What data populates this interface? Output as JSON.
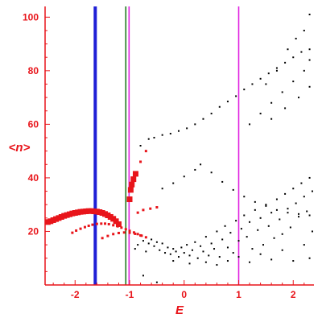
{
  "chart_data": {
    "type": "scatter",
    "xlabel": "E",
    "ylabel": "<n>",
    "xlim": [
      -2.55,
      2.38
    ],
    "ylim": [
      0,
      104
    ],
    "x_ticks": [
      -2,
      -1,
      0,
      1,
      2
    ],
    "y_ticks": [
      20,
      40,
      60,
      80,
      100
    ],
    "x_tick_labels": [
      "-2",
      "-1",
      "0",
      "1",
      "2"
    ],
    "y_tick_labels": [
      "20",
      "40",
      "60",
      "80",
      "100"
    ],
    "grid": false,
    "legend": "none",
    "colors": {
      "axis": "#e8141a",
      "red_series": "#e8141a",
      "black_series": "#000000",
      "line_blue": "#1f1fd6",
      "line_green": "#1f7a1f",
      "line_magenta": "#e020e0"
    },
    "vertical_lines": [
      {
        "x": -1.63,
        "color": "#1f1fd6",
        "width": "thick"
      },
      {
        "x": -1.07,
        "color": "#1f7a1f",
        "width": "thin"
      },
      {
        "x": -1.01,
        "color": "#e020e0",
        "width": "thin"
      },
      {
        "x": 1.0,
        "color": "#e020e0",
        "width": "thin"
      }
    ],
    "red_large_points": [
      [
        -2.5,
        23.5
      ],
      [
        -2.45,
        23.8
      ],
      [
        -2.4,
        24.2
      ],
      [
        -2.35,
        24.6
      ],
      [
        -2.3,
        25.0
      ],
      [
        -2.25,
        25.4
      ],
      [
        -2.2,
        25.8
      ],
      [
        -2.15,
        26.1
      ],
      [
        -2.1,
        26.4
      ],
      [
        -2.05,
        26.7
      ],
      [
        -2.0,
        26.9
      ],
      [
        -1.95,
        27.1
      ],
      [
        -1.9,
        27.3
      ],
      [
        -1.85,
        27.4
      ],
      [
        -1.8,
        27.5
      ],
      [
        -1.75,
        27.6
      ],
      [
        -1.7,
        27.6
      ],
      [
        -1.65,
        27.5
      ],
      [
        -1.6,
        27.4
      ],
      [
        -1.55,
        27.2
      ],
      [
        -1.5,
        26.9
      ],
      [
        -1.45,
        26.5
      ],
      [
        -1.4,
        26.0
      ],
      [
        -1.35,
        25.4
      ],
      [
        -1.3,
        24.7
      ],
      [
        -1.25,
        23.8
      ],
      [
        -1.2,
        22.7
      ],
      [
        -1.0,
        32.0
      ],
      [
        -0.98,
        35.5
      ],
      [
        -0.96,
        37.5
      ],
      [
        -0.93,
        39.5
      ],
      [
        -0.89,
        41.5
      ]
    ],
    "red_small_points": [
      [
        -2.05,
        19.5
      ],
      [
        -1.98,
        20.3
      ],
      [
        -1.9,
        21.0
      ],
      [
        -1.82,
        21.6
      ],
      [
        -1.75,
        22.1
      ],
      [
        -1.68,
        22.5
      ],
      [
        -1.6,
        22.8
      ],
      [
        -1.52,
        22.9
      ],
      [
        -1.45,
        22.9
      ],
      [
        -1.38,
        22.7
      ],
      [
        -1.3,
        22.3
      ],
      [
        -1.22,
        21.9
      ],
      [
        -1.15,
        21.4
      ],
      [
        -1.07,
        20.8
      ],
      [
        -1.0,
        20.2
      ],
      [
        -0.92,
        19.6
      ],
      [
        -0.85,
        19.0
      ],
      [
        -0.78,
        18.4
      ],
      [
        -0.7,
        17.8
      ],
      [
        -1.5,
        17.5
      ],
      [
        -1.4,
        18.3
      ],
      [
        -1.3,
        19.0
      ],
      [
        -1.2,
        19.4
      ],
      [
        -1.1,
        19.6
      ],
      [
        -1.0,
        19.5
      ],
      [
        -0.9,
        19.1
      ],
      [
        -0.8,
        18.5
      ],
      [
        -0.85,
        27.0
      ],
      [
        -0.75,
        28.0
      ],
      [
        -0.62,
        28.5
      ],
      [
        -0.5,
        29.0
      ],
      [
        -0.8,
        46.0
      ],
      [
        -0.7,
        50.0
      ]
    ],
    "black_points": [
      [
        -0.8,
        52.0
      ],
      [
        -0.65,
        54.5
      ],
      [
        -0.55,
        55.0
      ],
      [
        -0.4,
        56.0
      ],
      [
        -0.25,
        56.5
      ],
      [
        -0.1,
        57.5
      ],
      [
        0.05,
        58.5
      ],
      [
        0.2,
        60.0
      ],
      [
        0.35,
        62.0
      ],
      [
        0.5,
        64.0
      ],
      [
        0.65,
        66.5
      ],
      [
        0.8,
        68.5
      ],
      [
        0.95,
        70.5
      ],
      [
        1.1,
        73.0
      ],
      [
        1.25,
        75.0
      ],
      [
        1.4,
        77.0
      ],
      [
        1.55,
        79.0
      ],
      [
        1.7,
        81.0
      ],
      [
        1.85,
        83.0
      ],
      [
        2.0,
        85.0
      ],
      [
        2.15,
        87.0
      ],
      [
        2.3,
        88.0
      ],
      [
        1.2,
        60.0
      ],
      [
        1.4,
        64.0
      ],
      [
        1.6,
        68.0
      ],
      [
        1.8,
        72.0
      ],
      [
        2.0,
        76.0
      ],
      [
        2.2,
        80.0
      ],
      [
        2.3,
        84.0
      ],
      [
        1.5,
        75.0
      ],
      [
        1.7,
        80.0
      ],
      [
        1.9,
        88.0
      ],
      [
        2.05,
        92.0
      ],
      [
        2.2,
        95.0
      ],
      [
        2.3,
        101.0
      ],
      [
        1.6,
        62.0
      ],
      [
        1.85,
        66.0
      ],
      [
        2.1,
        70.0
      ],
      [
        2.3,
        74.0
      ],
      [
        -0.6,
        17.0
      ],
      [
        -0.55,
        14.5
      ],
      [
        -0.5,
        16.0
      ],
      [
        -0.45,
        13.0
      ],
      [
        -0.4,
        15.5
      ],
      [
        -0.35,
        12.0
      ],
      [
        -0.3,
        14.0
      ],
      [
        -0.25,
        11.5
      ],
      [
        -0.2,
        13.5
      ],
      [
        -0.15,
        12.5
      ],
      [
        -0.1,
        10.5
      ],
      [
        -0.05,
        14.0
      ],
      [
        0.0,
        12.0
      ],
      [
        0.05,
        15.0
      ],
      [
        0.1,
        11.0
      ],
      [
        0.15,
        13.0
      ],
      [
        0.2,
        16.0
      ],
      [
        0.25,
        10.0
      ],
      [
        0.3,
        14.5
      ],
      [
        0.35,
        12.5
      ],
      [
        0.4,
        18.0
      ],
      [
        0.45,
        11.0
      ],
      [
        0.5,
        15.5
      ],
      [
        0.55,
        13.5
      ],
      [
        0.6,
        20.0
      ],
      [
        0.65,
        10.5
      ],
      [
        0.7,
        17.0
      ],
      [
        0.75,
        22.0
      ],
      [
        0.8,
        14.0
      ],
      [
        0.85,
        19.5
      ],
      [
        0.9,
        12.0
      ],
      [
        0.95,
        24.0
      ],
      [
        1.0,
        16.5
      ],
      [
        1.05,
        21.0
      ],
      [
        1.1,
        26.0
      ],
      [
        1.15,
        18.0
      ],
      [
        1.2,
        23.5
      ],
      [
        1.25,
        13.5
      ],
      [
        1.3,
        28.0
      ],
      [
        1.35,
        20.5
      ],
      [
        1.4,
        25.0
      ],
      [
        1.45,
        15.0
      ],
      [
        1.5,
        30.0
      ],
      [
        1.55,
        22.0
      ],
      [
        1.6,
        27.0
      ],
      [
        1.65,
        17.5
      ],
      [
        1.7,
        32.0
      ],
      [
        1.75,
        24.5
      ],
      [
        1.8,
        19.0
      ],
      [
        1.85,
        34.0
      ],
      [
        1.9,
        28.5
      ],
      [
        1.95,
        21.5
      ],
      [
        2.0,
        36.0
      ],
      [
        2.05,
        30.5
      ],
      [
        2.1,
        25.5
      ],
      [
        2.15,
        38.0
      ],
      [
        2.2,
        33.0
      ],
      [
        2.25,
        27.5
      ],
      [
        2.3,
        40.0
      ],
      [
        2.35,
        35.0
      ],
      [
        0.3,
        45.0
      ],
      [
        0.5,
        42.0
      ],
      [
        0.7,
        38.5
      ],
      [
        0.9,
        35.5
      ],
      [
        1.1,
        33.0
      ],
      [
        1.3,
        31.0
      ],
      [
        1.5,
        29.5
      ],
      [
        1.7,
        28.0
      ],
      [
        1.9,
        27.0
      ],
      [
        2.1,
        26.5
      ],
      [
        2.3,
        26.0
      ],
      [
        -0.4,
        36.0
      ],
      [
        -0.2,
        38.0
      ],
      [
        0.0,
        40.5
      ],
      [
        0.2,
        43.0
      ],
      [
        -0.9,
        13.5
      ],
      [
        -0.85,
        15.0
      ],
      [
        -0.75,
        16.5
      ],
      [
        -0.7,
        12.5
      ],
      [
        -0.65,
        15.5
      ],
      [
        0.1,
        8.0
      ],
      [
        0.4,
        8.5
      ],
      [
        0.8,
        9.0
      ],
      [
        1.2,
        8.5
      ],
      [
        1.6,
        9.5
      ],
      [
        2.0,
        9.0
      ],
      [
        2.3,
        10.0
      ],
      [
        -0.2,
        9.0
      ],
      [
        0.6,
        7.5
      ],
      [
        1.4,
        11.5
      ],
      [
        1.8,
        13.0
      ],
      [
        2.2,
        15.0
      ],
      [
        1.0,
        10.5
      ],
      [
        2.35,
        20.0
      ],
      [
        -0.5,
        1.0
      ],
      [
        -0.75,
        3.5
      ]
    ]
  }
}
